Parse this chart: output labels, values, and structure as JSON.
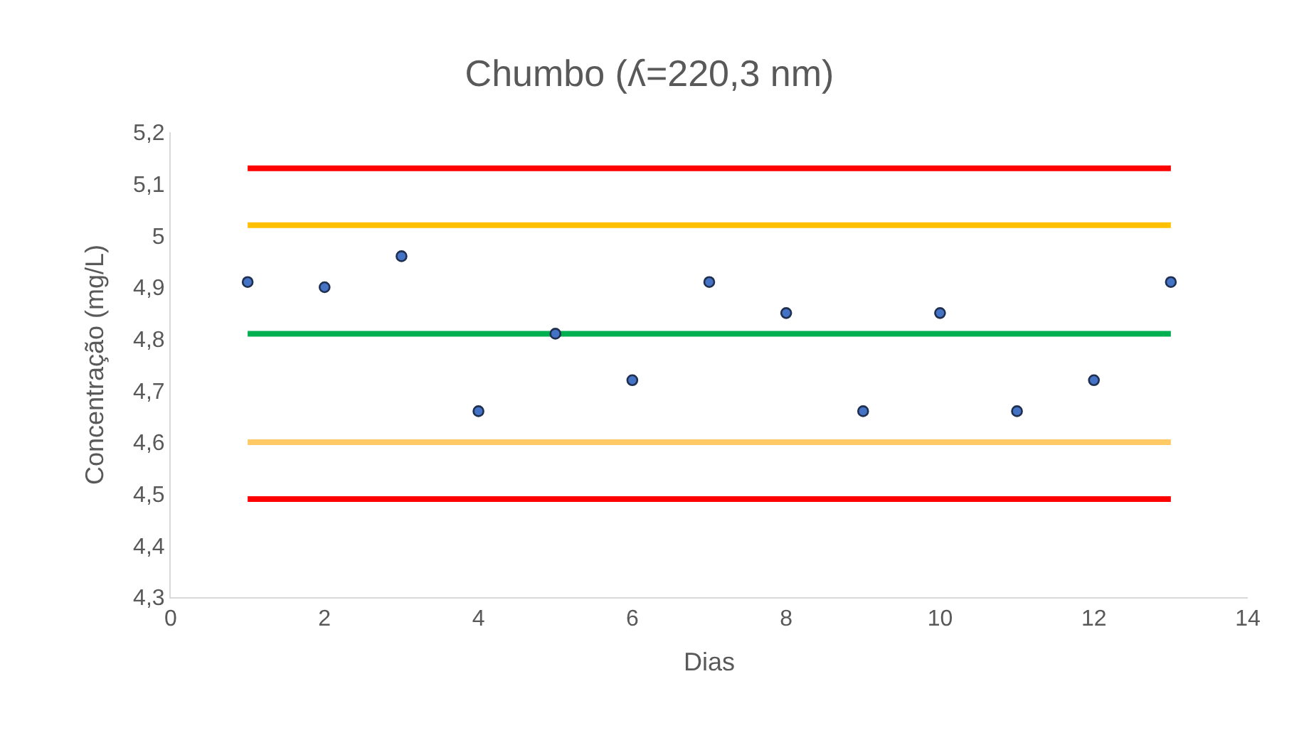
{
  "chart_data": {
    "type": "scatter",
    "title": "Chumbo (ʎ=220,3 nm)",
    "xlabel": "Dias",
    "ylabel": "Concentração (mg/L)",
    "x": [
      1,
      2,
      3,
      4,
      5,
      6,
      7,
      8,
      9,
      10,
      11,
      12,
      13
    ],
    "series": [
      {
        "type": "line",
        "color": "#ff0000",
        "values": [
          5.13,
          5.13,
          5.13,
          5.13,
          5.13,
          5.13,
          5.13,
          5.13,
          5.13,
          5.13,
          5.13,
          5.13,
          5.13
        ],
        "marker": "none"
      },
      {
        "type": "line",
        "color": "#ffc000",
        "values": [
          5.02,
          5.02,
          5.02,
          5.02,
          5.02,
          5.02,
          5.02,
          5.02,
          5.02,
          5.02,
          5.02,
          5.02,
          5.02
        ],
        "marker": "none"
      },
      {
        "type": "line",
        "color": "#00b050",
        "values": [
          4.81,
          4.81,
          4.81,
          4.81,
          4.81,
          4.81,
          4.81,
          4.81,
          4.81,
          4.81,
          4.81,
          4.81,
          4.81
        ],
        "marker": "none"
      },
      {
        "type": "line",
        "color": "#ffc966",
        "values": [
          4.6,
          4.6,
          4.6,
          4.6,
          4.6,
          4.6,
          4.6,
          4.6,
          4.6,
          4.6,
          4.6,
          4.6,
          4.6
        ],
        "marker": "none"
      },
      {
        "type": "line",
        "color": "#ff0000",
        "values": [
          4.49,
          4.49,
          4.49,
          4.49,
          4.49,
          4.49,
          4.49,
          4.49,
          4.49,
          4.49,
          4.49,
          4.49,
          4.49
        ],
        "marker": "none"
      },
      {
        "color": "#4472c4",
        "marker": "circle",
        "values": [
          4.91,
          4.9,
          4.96,
          4.66,
          4.81,
          4.72,
          4.91,
          4.85,
          4.66,
          4.85,
          4.66,
          4.72,
          4.91
        ]
      }
    ],
    "xlim": [
      0,
      14
    ],
    "xticks": [
      0,
      2,
      4,
      6,
      8,
      10,
      12,
      14
    ],
    "ylim": [
      4.3,
      5.2
    ],
    "yticks": [
      {
        "value": 4.3,
        "label": "4,3"
      },
      {
        "value": 4.4,
        "label": "4,4"
      },
      {
        "value": 4.5,
        "label": "4,5"
      },
      {
        "value": 4.6,
        "label": "4,6"
      },
      {
        "value": 4.7,
        "label": "4,7"
      },
      {
        "value": 4.8,
        "label": "4,8"
      },
      {
        "value": 4.9,
        "label": "4,9"
      },
      {
        "value": 5,
        "label": "5"
      },
      {
        "value": 5.1,
        "label": "5,1"
      },
      {
        "value": 5.2,
        "label": "5,2"
      }
    ],
    "grid": false
  }
}
